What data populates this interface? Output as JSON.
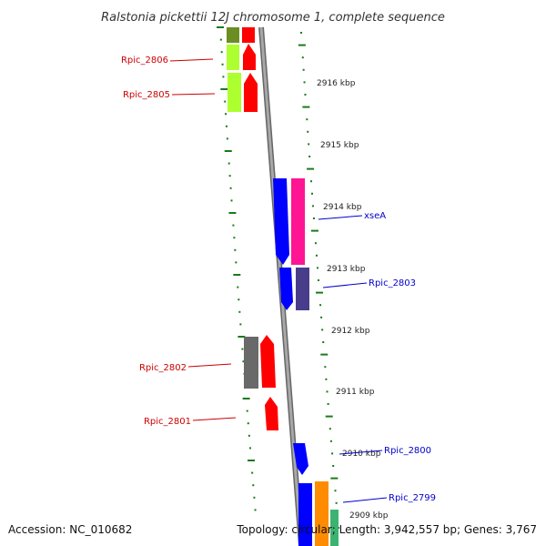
{
  "title": "Ralstonia pickettii 12J chromosome 1, complete sequence",
  "footer": {
    "accession": "Accession: NC_010682",
    "summary": "Topology: circular; Length: 3,942,557 bp; Genes: 3,767"
  },
  "colors": {
    "tick": "#1a7a1a",
    "backbone": "#8a8a8a",
    "label_left": "#cc0000",
    "label_right": "#0000cc"
  },
  "kbp_labels": [
    "2916 kbp",
    "2915 kbp",
    "2914 kbp",
    "2913 kbp",
    "2912 kbp",
    "2911 kbp",
    "2910 kbp",
    "2909 kbp"
  ],
  "gene_labels": [
    {
      "name": "Rpic_2806",
      "side": "left"
    },
    {
      "name": "Rpic_2805",
      "side": "left"
    },
    {
      "name": "xseA",
      "side": "right"
    },
    {
      "name": "Rpic_2803",
      "side": "right"
    },
    {
      "name": "Rpic_2802",
      "side": "left"
    },
    {
      "name": "Rpic_2801",
      "side": "left"
    },
    {
      "name": "Rpic_2800",
      "side": "right"
    },
    {
      "name": "Rpic_2799",
      "side": "right"
    }
  ],
  "gene_colors": [
    "#6b8e23",
    "#ff0000",
    "#adff2f",
    "#0000ff",
    "#ff1493",
    "#483d8b",
    "#696969",
    "#ff8c00",
    "#3cb371"
  ]
}
